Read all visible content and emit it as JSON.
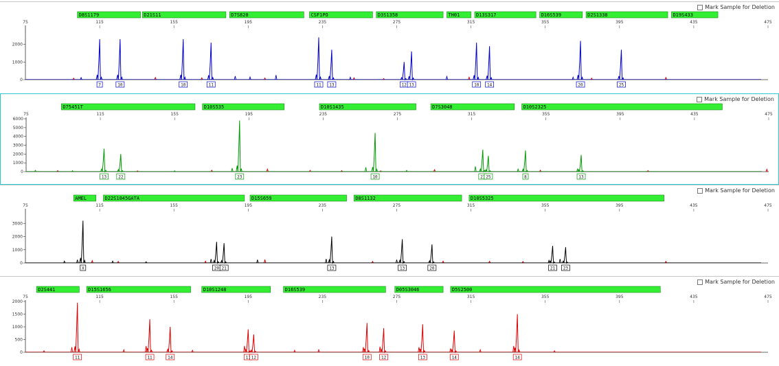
{
  "mark_label": "Mark Sample for Deletion",
  "colors": {
    "bin": "#33ee33",
    "blue": "#0000cc",
    "green": "#009900",
    "black": "#000000",
    "red": "#dd0000",
    "selected_border": "#2ec6d0"
  },
  "chart_data": [
    {
      "type": "line",
      "dye": "blue",
      "color": "#0000cc",
      "xlim": [
        75,
        475
      ],
      "x_ticks": [
        75,
        115,
        155,
        195,
        235,
        275,
        315,
        355,
        395,
        435,
        475
      ],
      "x_tick_labels": [
        "75",
        "115",
        "155",
        "195",
        "235",
        "275",
        "315",
        "355",
        "395",
        "435",
        "475"
      ],
      "ylim": [
        0,
        3000
      ],
      "y_ticks": [
        0,
        1000,
        2000
      ],
      "y_tick_labels": [
        "0",
        "1000",
        "2000"
      ],
      "markers": [
        {
          "name": "D8S1179",
          "start": 103,
          "end": 137
        },
        {
          "name": "D21S11",
          "start": 138,
          "end": 183
        },
        {
          "name": "D7S820",
          "start": 185,
          "end": 225
        },
        {
          "name": "CSF1PO",
          "start": 228,
          "end": 262
        },
        {
          "name": "D3S1358",
          "start": 264,
          "end": 300
        },
        {
          "name": "TH01",
          "start": 302,
          "end": 315
        },
        {
          "name": "D13S317",
          "start": 317,
          "end": 350
        },
        {
          "name": "D16S539",
          "start": 352,
          "end": 375
        },
        {
          "name": "D2S1338",
          "start": 377,
          "end": 421
        },
        {
          "name": "D19S433",
          "start": 423,
          "end": 448
        }
      ],
      "peaks": [
        {
          "x": 115,
          "h": 2300,
          "allele": "7"
        },
        {
          "x": 126,
          "h": 2300,
          "allele": "10"
        },
        {
          "x": 160,
          "h": 2300,
          "allele": "10"
        },
        {
          "x": 175,
          "h": 2100,
          "allele": "11"
        },
        {
          "x": 233,
          "h": 2400,
          "allele": "11"
        },
        {
          "x": 240,
          "h": 1700,
          "allele": "13"
        },
        {
          "x": 279,
          "h": 1000,
          "allele": "12"
        },
        {
          "x": 283,
          "h": 1600,
          "allele": "13"
        },
        {
          "x": 318,
          "h": 2100,
          "allele": "10"
        },
        {
          "x": 325,
          "h": 1900,
          "allele": "14"
        },
        {
          "x": 374,
          "h": 2200,
          "allele": "20"
        },
        {
          "x": 396,
          "h": 1700,
          "allele": "25"
        }
      ],
      "bins": [
        {
          "x": 115,
          "label": "7"
        },
        {
          "x": 126,
          "label": "10"
        },
        {
          "x": 160,
          "label": "10"
        },
        {
          "x": 175,
          "label": "11"
        },
        {
          "x": 233,
          "label": "11"
        },
        {
          "x": 240,
          "label": "13"
        },
        {
          "x": 279,
          "label": "12"
        },
        {
          "x": 283,
          "label": "13"
        },
        {
          "x": 318,
          "label": "10"
        },
        {
          "x": 325,
          "label": "14"
        },
        {
          "x": 374,
          "label": "20"
        },
        {
          "x": 396,
          "label": "25"
        }
      ],
      "noise": [
        {
          "x": 105,
          "h": 120
        },
        {
          "x": 188,
          "h": 200
        },
        {
          "x": 196,
          "h": 150
        },
        {
          "x": 210,
          "h": 260
        },
        {
          "x": 250,
          "h": 140
        },
        {
          "x": 302,
          "h": 180
        },
        {
          "x": 370,
          "h": 140
        }
      ],
      "red_noise": [
        {
          "x": 101,
          "h": 80
        },
        {
          "x": 145,
          "h": 120
        },
        {
          "x": 170,
          "h": 100
        },
        {
          "x": 204,
          "h": 90
        },
        {
          "x": 252,
          "h": 100
        },
        {
          "x": 268,
          "h": 60
        },
        {
          "x": 314,
          "h": 140
        },
        {
          "x": 380,
          "h": 80
        },
        {
          "x": 420,
          "h": 120
        }
      ]
    },
    {
      "type": "line",
      "dye": "green",
      "color": "#009900",
      "xlim": [
        75,
        475
      ],
      "x_ticks": [
        75,
        115,
        155,
        195,
        235,
        275,
        315,
        355,
        395,
        435,
        475
      ],
      "x_tick_labels": [
        "75",
        "115",
        "155",
        "195",
        "235",
        "275",
        "315",
        "355",
        "395",
        "435",
        "475"
      ],
      "ylim": [
        0,
        6000
      ],
      "y_ticks": [
        0,
        1000,
        2000,
        3000,
        4000,
        5000,
        6000
      ],
      "y_tick_labels": [
        "0",
        "1000",
        "2000",
        "3000",
        "4000",
        "5000",
        "6000"
      ],
      "markers": [
        {
          "name": "D75451T",
          "start": 94,
          "end": 166
        },
        {
          "name": "D10S535",
          "start": 170,
          "end": 214
        },
        {
          "name": "D10S1435",
          "start": 233,
          "end": 285
        },
        {
          "name": "D7S3048",
          "start": 293,
          "end": 338
        },
        {
          "name": "D10S2325",
          "start": 342,
          "end": 450
        }
      ],
      "peaks": [
        {
          "x": 117,
          "h": 2600,
          "allele": "13"
        },
        {
          "x": 126,
          "h": 2000,
          "allele": "22"
        },
        {
          "x": 190,
          "h": 5800,
          "allele": "23"
        },
        {
          "x": 263,
          "h": 4400,
          "allele": "10"
        },
        {
          "x": 321,
          "h": 2500,
          "allele": "21"
        },
        {
          "x": 324,
          "h": 1800,
          "allele": "25"
        },
        {
          "x": 344,
          "h": 2400,
          "allele": "8"
        },
        {
          "x": 374,
          "h": 1900,
          "allele": "13"
        }
      ],
      "bins": [
        {
          "x": 117,
          "label": "13"
        },
        {
          "x": 126,
          "label": "22"
        },
        {
          "x": 190,
          "label": "23"
        },
        {
          "x": 263,
          "label": "10"
        },
        {
          "x": 321,
          "label": "21"
        },
        {
          "x": 324,
          "label": "25"
        },
        {
          "x": 344,
          "label": "8"
        },
        {
          "x": 374,
          "label": "13"
        }
      ],
      "noise": [
        {
          "x": 80,
          "h": 150
        },
        {
          "x": 100,
          "h": 120
        },
        {
          "x": 155,
          "h": 100
        },
        {
          "x": 186,
          "h": 400
        },
        {
          "x": 258,
          "h": 500
        },
        {
          "x": 280,
          "h": 150
        },
        {
          "x": 317,
          "h": 600
        },
        {
          "x": 340,
          "h": 300
        },
        {
          "x": 372,
          "h": 300
        }
      ],
      "red_noise": [
        {
          "x": 92,
          "h": 120
        },
        {
          "x": 135,
          "h": 90
        },
        {
          "x": 175,
          "h": 160
        },
        {
          "x": 205,
          "h": 280
        },
        {
          "x": 228,
          "h": 140
        },
        {
          "x": 245,
          "h": 120
        },
        {
          "x": 266,
          "h": 90
        },
        {
          "x": 295,
          "h": 220
        },
        {
          "x": 352,
          "h": 160
        },
        {
          "x": 410,
          "h": 120
        },
        {
          "x": 474,
          "h": 260
        }
      ]
    },
    {
      "type": "line",
      "dye": "black",
      "color": "#000000",
      "xlim": [
        75,
        475
      ],
      "x_ticks": [
        75,
        115,
        155,
        195,
        235,
        275,
        315,
        355,
        395,
        435,
        475
      ],
      "x_tick_labels": [
        "75",
        "115",
        "155",
        "195",
        "235",
        "275",
        "315",
        "355",
        "395",
        "435",
        "475"
      ],
      "ylim": [
        0,
        4000
      ],
      "y_ticks": [
        0,
        1000,
        2000,
        3000
      ],
      "y_tick_labels": [
        "0",
        "1000",
        "2000",
        "3000"
      ],
      "markers": [
        {
          "name": "AMEL",
          "start": 101,
          "end": 113
        },
        {
          "name": "D22S1045GATA",
          "start": 117,
          "end": 193
        },
        {
          "name": "D15S659",
          "start": 196,
          "end": 248
        },
        {
          "name": "D8S1132",
          "start": 252,
          "end": 310
        },
        {
          "name": "D10S5325",
          "start": 314,
          "end": 419
        }
      ],
      "peaks": [
        {
          "x": 106,
          "h": 3200,
          "allele": "X"
        },
        {
          "x": 178,
          "h": 1600,
          "allele": "20"
        },
        {
          "x": 182,
          "h": 1500,
          "allele": "21"
        },
        {
          "x": 240,
          "h": 2000,
          "allele": "13"
        },
        {
          "x": 278,
          "h": 1800,
          "allele": "13"
        },
        {
          "x": 294,
          "h": 1400,
          "allele": "20"
        },
        {
          "x": 359,
          "h": 1300,
          "allele": "21"
        },
        {
          "x": 366,
          "h": 1200,
          "allele": "23"
        }
      ],
      "bins": [
        {
          "x": 106,
          "label": "X"
        },
        {
          "x": 178,
          "label": "20"
        },
        {
          "x": 182,
          "label": "21"
        },
        {
          "x": 240,
          "label": "13"
        },
        {
          "x": 278,
          "label": "13"
        },
        {
          "x": 294,
          "label": "20"
        },
        {
          "x": 359,
          "label": "21"
        },
        {
          "x": 366,
          "label": "23"
        }
      ],
      "noise": [
        {
          "x": 103,
          "h": 250
        },
        {
          "x": 96,
          "h": 150
        },
        {
          "x": 122,
          "h": 150
        },
        {
          "x": 140,
          "h": 100
        },
        {
          "x": 175,
          "h": 300
        },
        {
          "x": 200,
          "h": 250
        },
        {
          "x": 237,
          "h": 300
        },
        {
          "x": 275,
          "h": 250
        },
        {
          "x": 357,
          "h": 200
        },
        {
          "x": 363,
          "h": 300
        }
      ],
      "red_noise": [
        {
          "x": 111,
          "h": 180
        },
        {
          "x": 125,
          "h": 120
        },
        {
          "x": 172,
          "h": 140
        },
        {
          "x": 204,
          "h": 260
        },
        {
          "x": 262,
          "h": 120
        },
        {
          "x": 300,
          "h": 140
        },
        {
          "x": 325,
          "h": 130
        },
        {
          "x": 343,
          "h": 110
        },
        {
          "x": 420,
          "h": 120
        }
      ]
    },
    {
      "type": "line",
      "dye": "red",
      "color": "#dd0000",
      "xlim": [
        75,
        475
      ],
      "x_ticks": [
        75,
        115,
        155,
        195,
        235,
        275,
        315,
        355,
        395,
        435,
        475
      ],
      "x_tick_labels": [
        "75",
        "115",
        "155",
        "195",
        "235",
        "275",
        "315",
        "355",
        "395",
        "435",
        "475"
      ],
      "ylim": [
        0,
        2000
      ],
      "y_ticks": [
        0,
        500,
        1000,
        1500,
        2000
      ],
      "y_tick_labels": [
        "0",
        "500",
        "1000",
        "1500",
        "2000"
      ],
      "markers": [
        {
          "name": "D2S441",
          "start": 81,
          "end": 104
        },
        {
          "name": "D15S1656",
          "start": 108,
          "end": 164
        },
        {
          "name": "D10S1248",
          "start": 170,
          "end": 207
        },
        {
          "name": "D16S539",
          "start": 214,
          "end": 269
        },
        {
          "name": "D05S3046",
          "start": 274,
          "end": 300
        },
        {
          "name": "D5S2500",
          "start": 304,
          "end": 417
        }
      ],
      "peaks": [
        {
          "x": 103,
          "h": 1950,
          "allele": "11"
        },
        {
          "x": 142,
          "h": 1300,
          "allele": "11"
        },
        {
          "x": 153,
          "h": 1000,
          "allele": "14"
        },
        {
          "x": 195,
          "h": 900,
          "allele": "11"
        },
        {
          "x": 198,
          "h": 700,
          "allele": "12"
        },
        {
          "x": 259,
          "h": 1150,
          "allele": "10"
        },
        {
          "x": 268,
          "h": 950,
          "allele": "12"
        },
        {
          "x": 289,
          "h": 1100,
          "allele": "13"
        },
        {
          "x": 306,
          "h": 850,
          "allele": "14"
        },
        {
          "x": 340,
          "h": 1500,
          "allele": "14"
        }
      ],
      "bins": [
        {
          "x": 103,
          "label": "11"
        },
        {
          "x": 142,
          "label": "11"
        },
        {
          "x": 153,
          "label": "14"
        },
        {
          "x": 195,
          "label": "11"
        },
        {
          "x": 198,
          "label": "12"
        },
        {
          "x": 259,
          "label": "10"
        },
        {
          "x": 268,
          "label": "12"
        },
        {
          "x": 289,
          "label": "13"
        },
        {
          "x": 306,
          "label": "14"
        },
        {
          "x": 340,
          "label": "14"
        }
      ],
      "noise": [
        {
          "x": 85,
          "h": 60
        },
        {
          "x": 100,
          "h": 200
        },
        {
          "x": 128,
          "h": 100
        },
        {
          "x": 140,
          "h": 250
        },
        {
          "x": 165,
          "h": 80
        },
        {
          "x": 193,
          "h": 250
        },
        {
          "x": 220,
          "h": 80
        },
        {
          "x": 233,
          "h": 100
        },
        {
          "x": 257,
          "h": 200
        },
        {
          "x": 266,
          "h": 220
        },
        {
          "x": 287,
          "h": 200
        },
        {
          "x": 304,
          "h": 150
        },
        {
          "x": 320,
          "h": 100
        },
        {
          "x": 338,
          "h": 250
        },
        {
          "x": 360,
          "h": 60
        }
      ],
      "red_noise": []
    }
  ]
}
